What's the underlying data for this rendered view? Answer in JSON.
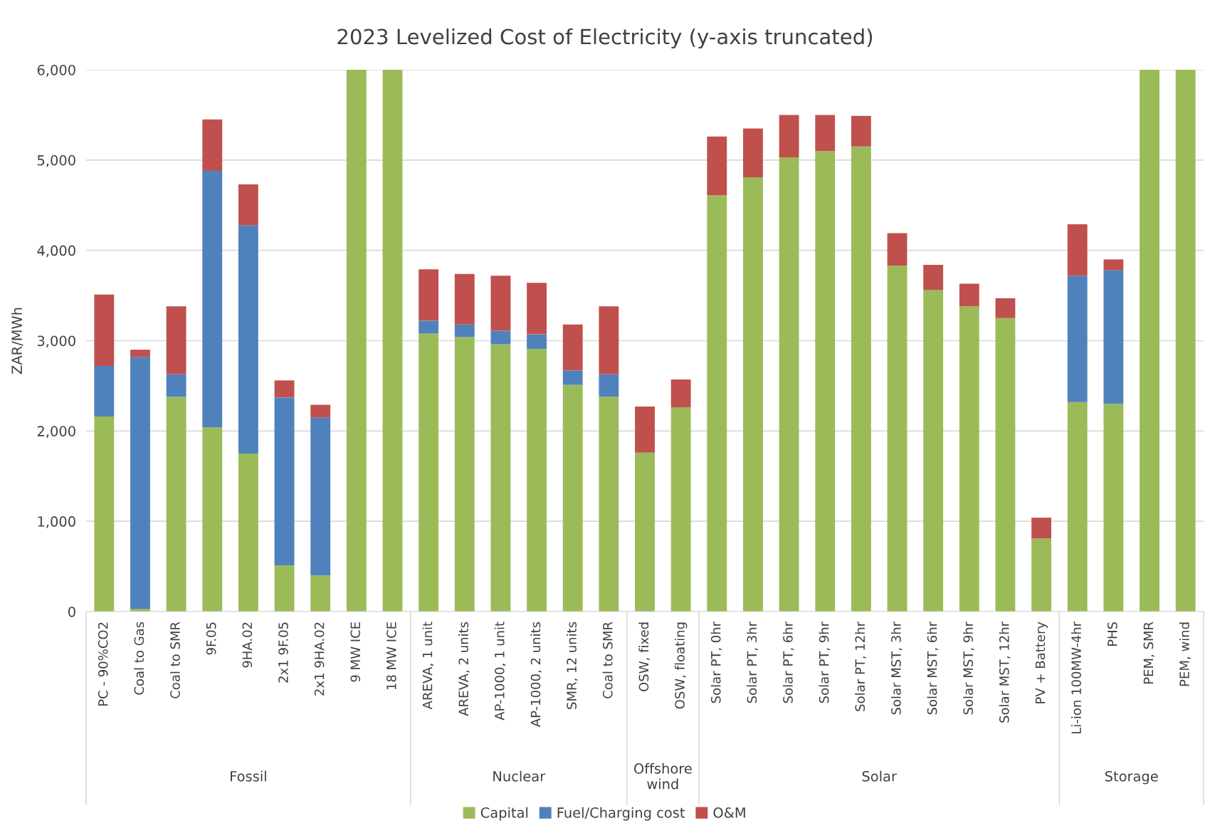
{
  "chart_data": {
    "type": "bar",
    "stacked": true,
    "title": "2023 Levelized Cost of Electricity (y-axis truncated)",
    "ylabel": "ZAR/MWh",
    "categories": [
      "PC - 90%CO2",
      "Coal to Gas",
      "Coal to SMR",
      "9F.05",
      "9HA.02",
      "2x1 9F.05",
      "2x1 9HA.02",
      "9 MW ICE",
      "18 MW ICE",
      "AREVA, 1 unit",
      "AREVA, 2 units",
      "AP-1000, 1 unit",
      "AP-1000, 2 units",
      "SMR, 12 units",
      "Coal to SMR",
      "OSW, fixed",
      "OSW, floating",
      "Solar PT, 0hr",
      "Solar PT, 3hr",
      "Solar PT, 6hr",
      "Solar PT, 9hr",
      "Solar PT, 12hr",
      "Solar MST, 3hr",
      "Solar MST, 6hr",
      "Solar MST, 9hr",
      "Solar MST, 12hr",
      "PV + Battery",
      "Li-ion 100MW-4hr",
      "PHS",
      "PEM, SMR",
      "PEM, wind"
    ],
    "series": [
      {
        "name": "Capital",
        "color": "#9bbb59",
        "values": [
          2160,
          30,
          2380,
          2040,
          1750,
          510,
          400,
          6000,
          6000,
          3080,
          3040,
          2960,
          2910,
          2510,
          2380,
          1760,
          2260,
          4610,
          4810,
          5030,
          5100,
          5150,
          3830,
          3560,
          3380,
          3250,
          810,
          2320,
          2300,
          6000,
          6000
        ]
      },
      {
        "name": "Fuel/Charging cost",
        "color": "#4f81bd",
        "values": [
          560,
          2790,
          250,
          2840,
          2530,
          1860,
          1750,
          null,
          null,
          140,
          140,
          150,
          160,
          160,
          250,
          null,
          null,
          null,
          null,
          null,
          null,
          null,
          null,
          null,
          null,
          null,
          null,
          1400,
          1480,
          null,
          null
        ]
      },
      {
        "name": "O&M",
        "color": "#c0504d",
        "values": [
          790,
          80,
          750,
          570,
          450,
          190,
          140,
          null,
          null,
          570,
          560,
          610,
          570,
          510,
          750,
          510,
          310,
          650,
          540,
          470,
          400,
          340,
          360,
          280,
          250,
          220,
          230,
          570,
          120,
          null,
          null
        ]
      }
    ],
    "ylim": [
      0,
      6000
    ],
    "yticks": [
      0,
      {
        "value": 1000,
        "label": "1,000"
      },
      {
        "value": 2000,
        "label": "2,000"
      },
      {
        "value": 3000,
        "label": "3,000"
      },
      {
        "value": 4000,
        "label": "4,000"
      },
      {
        "value": 5000,
        "label": "5,000"
      },
      {
        "value": 6000,
        "label": "6,000"
      }
    ],
    "grid": "y",
    "legend": "bottom",
    "annotations": [
      "Fossil",
      "Nuclear",
      "Offshore\nwind",
      "Solar",
      "Storage"
    ]
  }
}
